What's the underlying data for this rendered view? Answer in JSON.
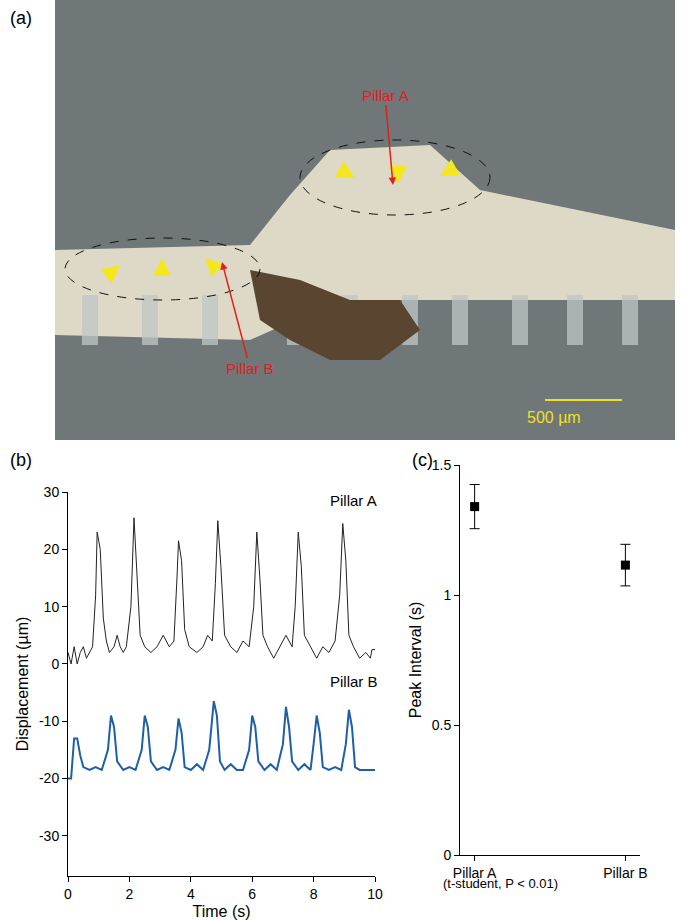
{
  "image_panel": {
    "label": "(a)",
    "annotations": [
      "Pillar A",
      "Pillar B"
    ],
    "scale_bar": "500 µm"
  },
  "chart_data": [
    {
      "type": "line",
      "title": "(b)",
      "xlabel": "Time (s)",
      "ylabel": "Displacement (µm)",
      "xlim": [
        0,
        10
      ],
      "xticks": [
        0,
        2,
        4,
        6,
        8,
        10
      ],
      "ylim": [
        -37,
        30
      ],
      "yticks": [
        -30,
        -20,
        -10,
        0,
        10,
        20,
        30
      ],
      "series": [
        {
          "name": "Pillar A",
          "color": "#222222",
          "line_style": "solid",
          "x": [
            0,
            0.1,
            0.2,
            0.3,
            0.4,
            0.5,
            0.6,
            0.7,
            0.8,
            0.9,
            0.95,
            1.05,
            1.15,
            1.25,
            1.35,
            1.5,
            1.6,
            1.7,
            1.8,
            1.9,
            2.05,
            2.15,
            2.25,
            2.35,
            2.5,
            2.7,
            2.9,
            3.1,
            3.3,
            3.45,
            3.55,
            3.6,
            3.7,
            3.8,
            3.95,
            4.2,
            4.4,
            4.55,
            4.7,
            4.8,
            4.88,
            4.98,
            5.1,
            5.3,
            5.5,
            5.7,
            5.9,
            6.05,
            6.15,
            6.25,
            6.35,
            6.5,
            6.7,
            6.9,
            7.1,
            7.3,
            7.4,
            7.5,
            7.6,
            7.7,
            7.9,
            8.1,
            8.3,
            8.5,
            8.7,
            8.85,
            8.95,
            9.05,
            9.15,
            9.3,
            9.5,
            9.7,
            9.85,
            9.9,
            10
          ],
          "values": [
            2,
            0,
            3,
            0,
            2,
            3,
            1,
            2,
            3,
            12,
            23,
            20,
            8,
            4,
            2,
            3,
            5,
            3,
            2,
            3,
            10,
            25.5,
            15,
            5,
            3,
            2,
            3,
            5,
            3,
            4,
            15,
            21.5,
            18,
            6,
            3,
            2,
            3,
            5,
            4,
            14,
            25,
            17,
            5,
            3,
            2,
            4,
            3,
            10,
            23,
            15,
            5,
            3,
            1,
            3,
            5,
            3,
            10,
            23,
            17,
            5,
            3,
            1,
            3,
            2,
            4,
            12,
            24.5,
            18,
            5,
            3,
            1,
            2,
            1,
            2.5,
            2.5
          ]
        },
        {
          "name": "Pillar B",
          "color": "#1f5fa8",
          "line_style": "solid",
          "x": [
            0,
            0.1,
            0.2,
            0.3,
            0.4,
            0.5,
            0.7,
            0.9,
            1.1,
            1.3,
            1.4,
            1.5,
            1.6,
            1.8,
            2,
            2.2,
            2.4,
            2.5,
            2.6,
            2.7,
            2.9,
            3.1,
            3.3,
            3.5,
            3.6,
            3.7,
            3.8,
            4,
            4.2,
            4.4,
            4.6,
            4.75,
            4.85,
            4.95,
            5.1,
            5.3,
            5.5,
            5.7,
            5.9,
            6,
            6.1,
            6.2,
            6.4,
            6.6,
            6.8,
            7,
            7.1,
            7.2,
            7.3,
            7.5,
            7.7,
            7.9,
            8,
            8.1,
            8.2,
            8.3,
            8.5,
            8.7,
            8.9,
            9.05,
            9.15,
            9.25,
            9.35,
            9.5,
            9.7,
            9.9,
            10
          ],
          "values": [
            -20,
            -20,
            -13,
            -13,
            -16,
            -18,
            -18.5,
            -18,
            -18.5,
            -15,
            -9,
            -11,
            -17,
            -18.5,
            -18,
            -18.5,
            -15,
            -9,
            -11,
            -17,
            -18.5,
            -18,
            -18.5,
            -15,
            -9.5,
            -12,
            -18,
            -18.5,
            -17.5,
            -18.5,
            -15,
            -6.5,
            -9,
            -17,
            -18.5,
            -17.5,
            -18.5,
            -18.5,
            -15,
            -9,
            -11,
            -17,
            -18.5,
            -17.5,
            -18.5,
            -14,
            -7.5,
            -11,
            -17,
            -18.5,
            -17.5,
            -18.5,
            -14,
            -9,
            -12,
            -18,
            -18.5,
            -18,
            -18.5,
            -14,
            -8,
            -11,
            -18,
            -18.5,
            -18.5,
            -18.5,
            -18.5
          ]
        }
      ]
    },
    {
      "type": "scatter",
      "title": "(c)",
      "ylabel": "Peak Interval (s)",
      "categories": [
        "Pillar A",
        "Pillar B"
      ],
      "values": [
        1.34,
        1.115
      ],
      "error": [
        0.085,
        0.08
      ],
      "ylim": [
        0,
        1.5
      ],
      "yticks": [
        0,
        0.5,
        1,
        1.5
      ],
      "color": "#000000",
      "marker": "square",
      "annotations": [
        "(t-student, P < 0.01)"
      ]
    }
  ]
}
